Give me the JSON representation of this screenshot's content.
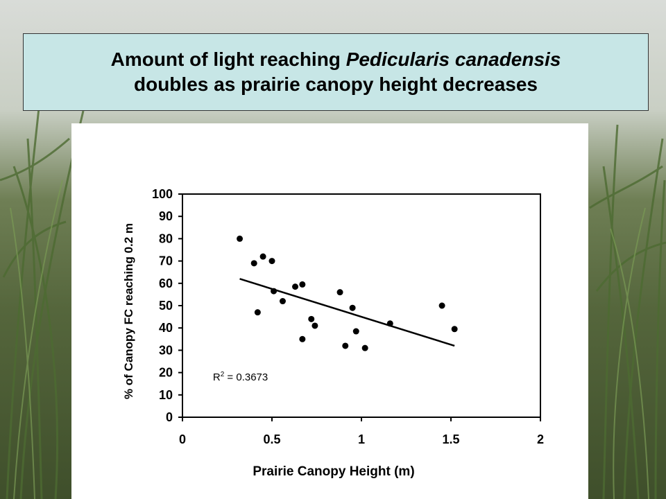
{
  "slide": {
    "title_line1_part1": "Amount of light reaching ",
    "title_line1_species": "Pedicularis canadensis",
    "title_line2": "doubles as prairie canopy height decreases"
  },
  "chart_data": {
    "type": "scatter",
    "xlabel": "Prairie Canopy Height (m)",
    "ylabel": "% of Canopy FC reaching 0.2 m",
    "xlim": [
      0,
      2
    ],
    "ylim": [
      0,
      100
    ],
    "x_ticks": [
      "0",
      "0.5",
      "1",
      "1.5",
      "2"
    ],
    "y_ticks": [
      "0",
      "10",
      "20",
      "30",
      "40",
      "50",
      "60",
      "70",
      "80",
      "90",
      "100"
    ],
    "grid": false,
    "annotation": "R",
    "annotation_sup": "2",
    "annotation_rest": " = 0.3673",
    "points": [
      {
        "x": 0.32,
        "y": 80
      },
      {
        "x": 0.4,
        "y": 69
      },
      {
        "x": 0.42,
        "y": 47
      },
      {
        "x": 0.45,
        "y": 72
      },
      {
        "x": 0.5,
        "y": 70
      },
      {
        "x": 0.51,
        "y": 56.5
      },
      {
        "x": 0.56,
        "y": 52
      },
      {
        "x": 0.63,
        "y": 58.5
      },
      {
        "x": 0.67,
        "y": 59.5
      },
      {
        "x": 0.67,
        "y": 35
      },
      {
        "x": 0.72,
        "y": 44
      },
      {
        "x": 0.74,
        "y": 41
      },
      {
        "x": 0.88,
        "y": 56
      },
      {
        "x": 0.91,
        "y": 32
      },
      {
        "x": 0.95,
        "y": 49
      },
      {
        "x": 0.97,
        "y": 38.5
      },
      {
        "x": 1.02,
        "y": 31
      },
      {
        "x": 1.16,
        "y": 42
      },
      {
        "x": 1.45,
        "y": 50
      },
      {
        "x": 1.52,
        "y": 39.5
      }
    ],
    "trendline": {
      "x": [
        0.32,
        1.52
      ],
      "y": [
        62,
        32
      ]
    },
    "colors": {
      "points": "#000000",
      "trendline": "#000000",
      "frame": "#000000"
    }
  }
}
